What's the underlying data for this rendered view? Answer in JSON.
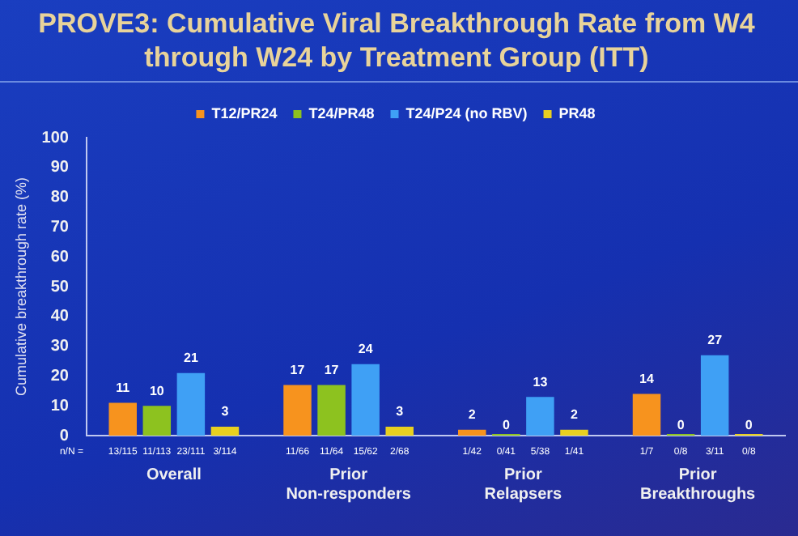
{
  "chart_data": {
    "type": "bar",
    "title": "PROVE3: Cumulative Viral Breakthrough Rate from W4 through W24 by Treatment Group (ITT)",
    "ylabel": "Cumulative breakthrough rate (%)",
    "categories": [
      "Overall",
      "Prior Non-responders",
      "Prior Relapsers",
      "Prior Breakthroughs"
    ],
    "series": [
      {
        "name": "T12/PR24",
        "color": "#f7931e",
        "values": [
          11,
          17,
          2,
          14
        ]
      },
      {
        "name": "T24/PR48",
        "color": "#8dc21f",
        "values": [
          10,
          17,
          0,
          0
        ]
      },
      {
        "name": "T24/P24 (no RBV)",
        "color": "#3fa0f5",
        "values": [
          21,
          24,
          13,
          27
        ]
      },
      {
        "name": "PR48",
        "color": "#e8d020",
        "values": [
          3,
          3,
          2,
          0
        ]
      }
    ],
    "ylim": [
      0,
      100
    ],
    "yticks": [
      0,
      10,
      20,
      30,
      40,
      50,
      60,
      70,
      80,
      90,
      100
    ],
    "grid": false,
    "legend": "top",
    "data_labels": true,
    "annotations": [
      "n/N =",
      "13/115",
      "11/113",
      "23/111",
      "3/114",
      "11/66",
      "11/64",
      "15/62",
      "2/68",
      "1/42",
      "0/41",
      "5/38",
      "1/41",
      "1/7",
      "0/8",
      "3/11",
      "0/8"
    ]
  }
}
